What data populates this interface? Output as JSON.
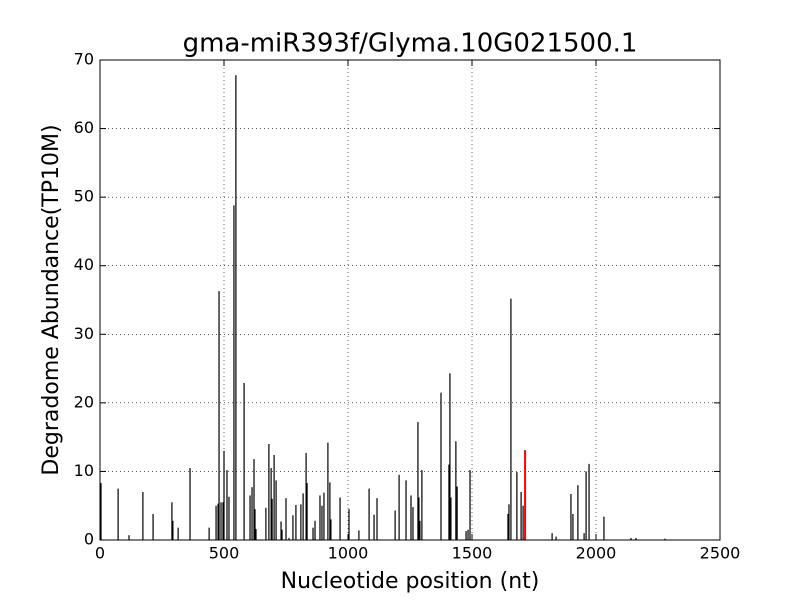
{
  "chart_data": {
    "type": "vlines",
    "title": "gma-miR393f/Glyma.10G021500.1",
    "x_label": "Nucleotide position (nt)",
    "y_label": "Degradome Abundance(TP10M)",
    "xlim": [
      0,
      2500
    ],
    "xticks": [
      0,
      500,
      1000,
      1500,
      2000,
      2500
    ],
    "ylim": [
      0,
      70
    ],
    "yticks": [
      0,
      10,
      20,
      30,
      40,
      50,
      60,
      70
    ],
    "grid": true,
    "series": [
      {
        "color": "#000000",
        "x": [
          4,
          73,
          117,
          173,
          214,
          290,
          294,
          315,
          363,
          440,
          468,
          476,
          480,
          488,
          496,
          500,
          512,
          520,
          540,
          548,
          581,
          605,
          613,
          621,
          625,
          629,
          669,
          681,
          690,
          694,
          702,
          710,
          730,
          734,
          750,
          762,
          778,
          790,
          810,
          819,
          831,
          835,
          859,
          867,
          887,
          895,
          903,
          919,
          927,
          931,
          968,
          1004,
          1044,
          1085,
          1105,
          1117,
          1190,
          1206,
          1234,
          1254,
          1262,
          1282,
          1286,
          1290,
          1298,
          1375,
          1407,
          1411,
          1415,
          1435,
          1440,
          1476,
          1484,
          1492,
          1645,
          1649,
          1657,
          1681,
          1698,
          1706,
          1823,
          1839,
          1899,
          1907,
          1927,
          1952,
          1960,
          1972,
          2032,
          2141,
          2161,
          2278
        ],
        "values": [
          8.3,
          7.5,
          0.7,
          7,
          3.8,
          5.5,
          2.8,
          1.8,
          10.5,
          1.8,
          5,
          5.3,
          36.3,
          5.5,
          5.5,
          13,
          10.2,
          6.3,
          48.8,
          67.8,
          22.9,
          6.5,
          7.7,
          11.8,
          4.5,
          1.6,
          4.7,
          14,
          10.5,
          6,
          12.4,
          8.7,
          2.7,
          1.5,
          6.1,
          0.3,
          3.6,
          5.1,
          5.2,
          6.8,
          12.7,
          8.3,
          1.8,
          2.8,
          6.5,
          5,
          6.9,
          14.2,
          8.4,
          3,
          6.2,
          4.5,
          1.4,
          7.5,
          3.7,
          6.1,
          4.3,
          9.5,
          8.7,
          6.5,
          4.8,
          17.2,
          6.2,
          2.8,
          10.2,
          21.5,
          11,
          24.3,
          6.2,
          14.4,
          7.8,
          1.3,
          1.5,
          10.2,
          3.8,
          5.2,
          35.2,
          9.9,
          7,
          5,
          1,
          0.5,
          6.7,
          3.8,
          8,
          1,
          10,
          11.1,
          3.4,
          0.3,
          0.3,
          0.2
        ]
      },
      {
        "color": "#ff0000",
        "x": [
          1714
        ],
        "values": [
          13.1
        ]
      }
    ]
  }
}
